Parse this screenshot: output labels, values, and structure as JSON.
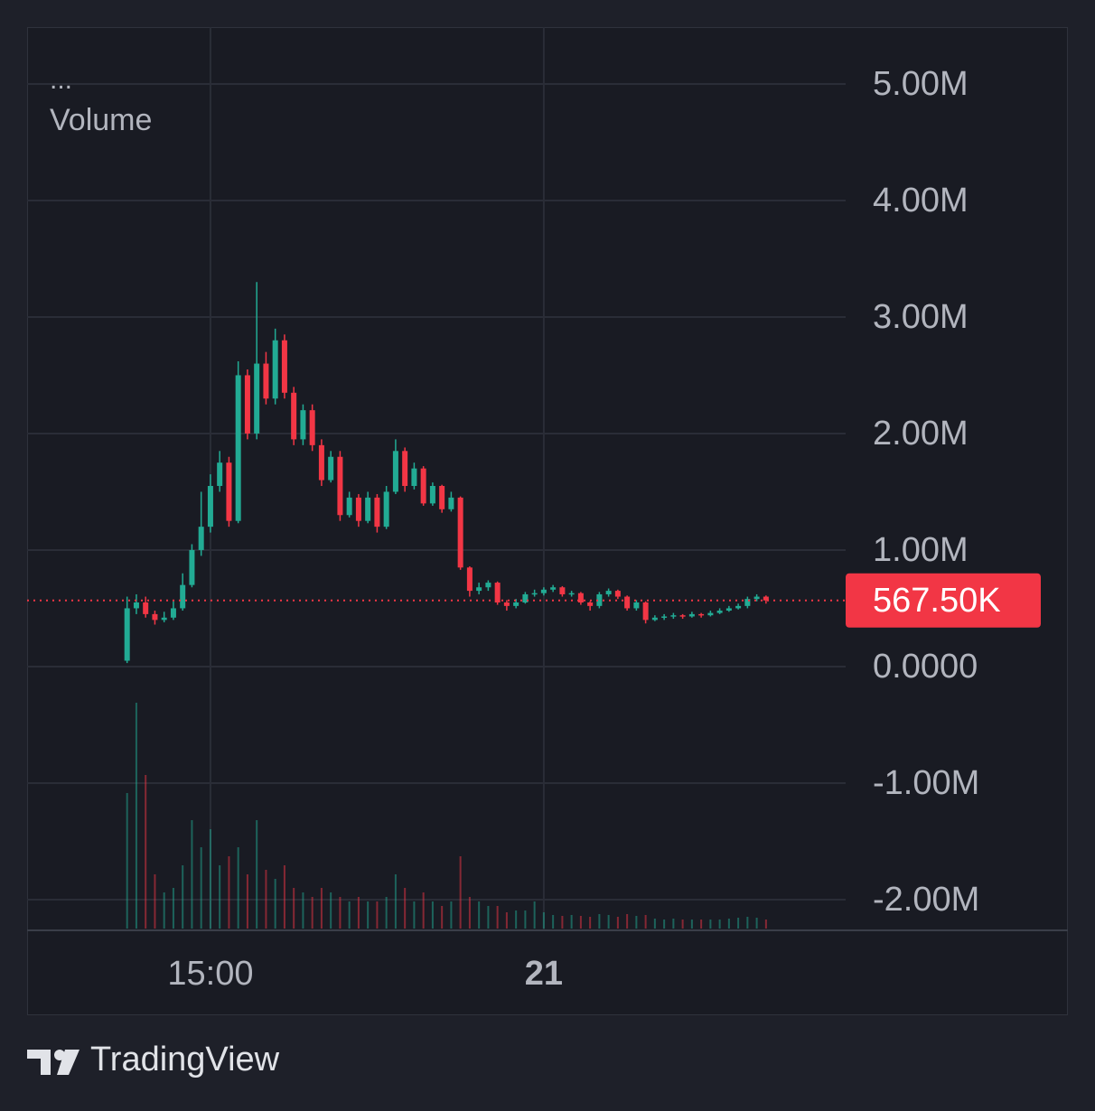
{
  "chart_data": {
    "type": "candlestick",
    "menu": "...",
    "indicator": "Volume",
    "up_color": "#22ab94",
    "down_color": "#f23645",
    "x": [
      12.75,
      13,
      13.25,
      13.5,
      13.75,
      14,
      14.25,
      14.5,
      14.75,
      15,
      15.25,
      15.5,
      15.75,
      16,
      16.25,
      16.5,
      16.75,
      17,
      17.25,
      17.5,
      17.75,
      18,
      18.25,
      18.5,
      18.75,
      19,
      19.25,
      19.5,
      19.75,
      20,
      20.25,
      20.5,
      20.75,
      21,
      21.25,
      21.5,
      21.75,
      22,
      22.25,
      22.5,
      22.75,
      23,
      23.25,
      23.5,
      23.75,
      24,
      24.25,
      24.5,
      24.75,
      25,
      25.25,
      25.5,
      25.75,
      26,
      26.25,
      26.5,
      26.75,
      27,
      27.25,
      27.5,
      27.75,
      28,
      28.25,
      28.5,
      28.75,
      29,
      29.25,
      29.5,
      29.75,
      30
    ],
    "open": [
      50000,
      500000,
      550000,
      450000,
      400000,
      420000,
      500000,
      700000,
      1000000,
      1200000,
      1550000,
      1750000,
      1250000,
      2500000,
      2000000,
      2600000,
      2300000,
      2800000,
      2350000,
      1950000,
      2200000,
      1900000,
      1600000,
      1800000,
      1300000,
      1450000,
      1250000,
      1450000,
      1200000,
      1500000,
      1850000,
      1550000,
      1700000,
      1400000,
      1550000,
      1350000,
      1450000,
      850000,
      650000,
      680000,
      720000,
      550000,
      520000,
      550000,
      620000,
      630000,
      660000,
      680000,
      620000,
      630000,
      550000,
      520000,
      620000,
      650000,
      600000,
      500000,
      550000,
      400000,
      420000,
      430000,
      440000,
      430000,
      450000,
      440000,
      460000,
      480000,
      500000,
      520000,
      580000,
      600000
    ],
    "high": [
      600000,
      620000,
      600000,
      480000,
      470000,
      560000,
      800000,
      1050000,
      1500000,
      1650000,
      1850000,
      1800000,
      2620000,
      2550000,
      3300000,
      2700000,
      2900000,
      2850000,
      2400000,
      2250000,
      2250000,
      1950000,
      1850000,
      1850000,
      1500000,
      1480000,
      1500000,
      1480000,
      1550000,
      1950000,
      1880000,
      1750000,
      1720000,
      1580000,
      1560000,
      1500000,
      1460000,
      860000,
      720000,
      740000,
      730000,
      570000,
      580000,
      640000,
      660000,
      680000,
      700000,
      690000,
      650000,
      640000,
      560000,
      640000,
      670000,
      660000,
      610000,
      570000,
      560000,
      440000,
      450000,
      460000,
      450000,
      470000,
      460000,
      480000,
      500000,
      520000,
      540000,
      600000,
      620000,
      610000
    ],
    "low": [
      30000,
      450000,
      420000,
      360000,
      380000,
      400000,
      480000,
      680000,
      950000,
      1150000,
      1500000,
      1200000,
      1230000,
      1950000,
      1950000,
      2250000,
      2250000,
      2300000,
      1900000,
      1900000,
      1850000,
      1550000,
      1580000,
      1250000,
      1280000,
      1200000,
      1230000,
      1150000,
      1180000,
      1480000,
      1500000,
      1520000,
      1380000,
      1380000,
      1320000,
      1330000,
      830000,
      600000,
      620000,
      650000,
      530000,
      480000,
      500000,
      540000,
      600000,
      610000,
      640000,
      600000,
      600000,
      530000,
      480000,
      500000,
      600000,
      580000,
      480000,
      480000,
      370000,
      390000,
      400000,
      410000,
      410000,
      420000,
      420000,
      430000,
      450000,
      470000,
      490000,
      500000,
      560000,
      540000
    ],
    "close": [
      500000,
      550000,
      450000,
      400000,
      420000,
      500000,
      700000,
      1000000,
      1200000,
      1550000,
      1750000,
      1250000,
      2500000,
      2000000,
      2600000,
      2300000,
      2800000,
      2350000,
      1950000,
      2200000,
      1900000,
      1600000,
      1800000,
      1300000,
      1450000,
      1250000,
      1450000,
      1200000,
      1500000,
      1850000,
      1550000,
      1700000,
      1400000,
      1550000,
      1350000,
      1450000,
      850000,
      650000,
      680000,
      720000,
      550000,
      520000,
      550000,
      620000,
      630000,
      660000,
      680000,
      620000,
      630000,
      550000,
      520000,
      620000,
      650000,
      600000,
      500000,
      550000,
      400000,
      420000,
      430000,
      440000,
      430000,
      450000,
      440000,
      460000,
      480000,
      500000,
      520000,
      580000,
      600000,
      567500
    ],
    "volume": [
      1500,
      2500,
      1700,
      600,
      400,
      450,
      700,
      1200,
      900,
      1100,
      700,
      800,
      900,
      600,
      1200,
      650,
      550,
      700,
      450,
      400,
      350,
      450,
      400,
      350,
      300,
      350,
      300,
      300,
      350,
      600,
      450,
      300,
      400,
      300,
      250,
      300,
      800,
      350,
      300,
      250,
      250,
      180,
      200,
      200,
      300,
      180,
      150,
      140,
      150,
      140,
      130,
      160,
      150,
      130,
      160,
      140,
      150,
      110,
      100,
      110,
      100,
      100,
      100,
      100,
      100,
      110,
      120,
      130,
      120,
      100
    ],
    "last": {
      "value": 567500,
      "label": "567.50K"
    },
    "ylim": [
      -2264000,
      5488000
    ],
    "yticks": [
      {
        "value": -2000000,
        "label": "-2.00M"
      },
      {
        "value": -1000000,
        "label": "-1.00M"
      },
      {
        "value": 0,
        "label": "0.0000"
      },
      {
        "value": 1000000,
        "label": "1.00M"
      },
      {
        "value": 2000000,
        "label": "2.00M"
      },
      {
        "value": 3000000,
        "label": "3.00M"
      },
      {
        "value": 4000000,
        "label": "4.00M"
      },
      {
        "value": 5000000,
        "label": "5.00M"
      }
    ],
    "xlim": [
      10.05,
      32.15
    ],
    "xticks": [
      {
        "value": 15,
        "label": "15:00"
      },
      {
        "value": 24,
        "label": "21"
      }
    ],
    "grid": true
  },
  "brand": "TradingView"
}
